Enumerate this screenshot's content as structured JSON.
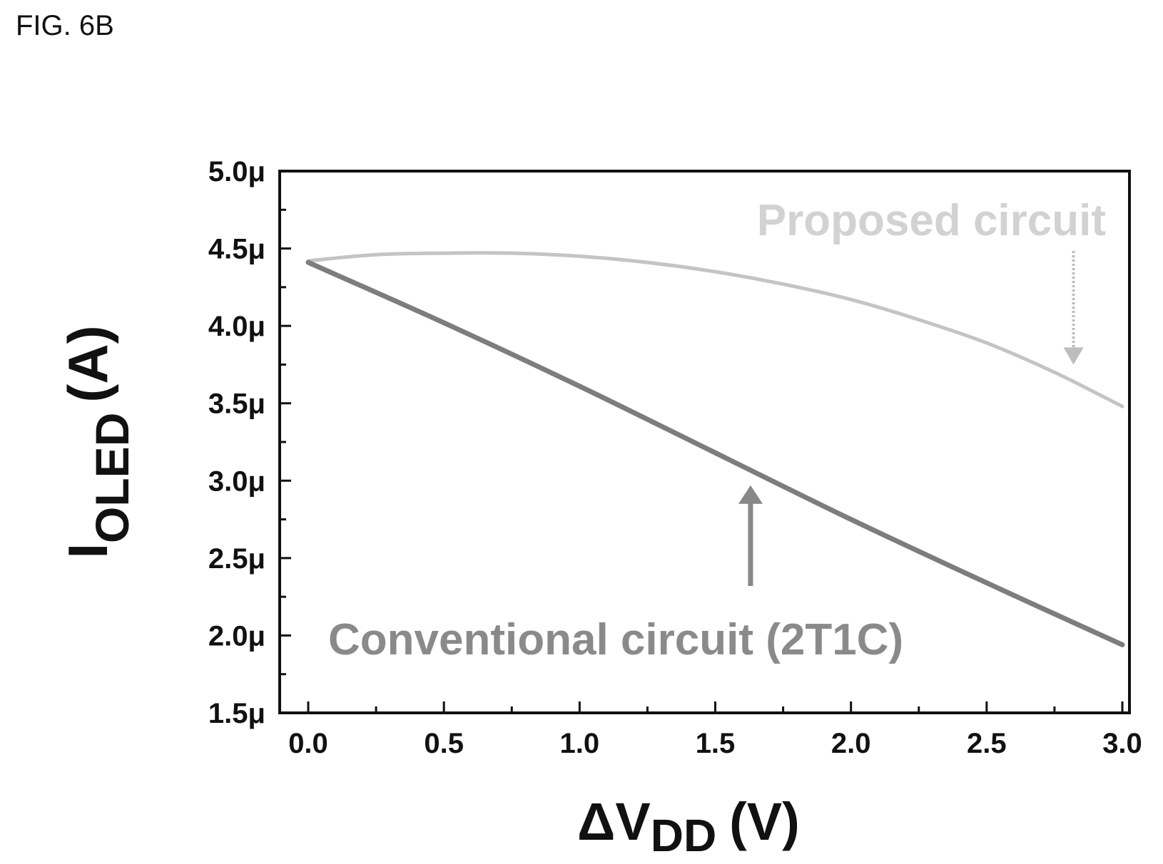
{
  "figure_label": "FIG. 6B",
  "chart_data": {
    "type": "line",
    "xlabel": {
      "delta": "ΔV",
      "sub": "DD",
      "unit": "(V)"
    },
    "ylabel": {
      "main": "I",
      "sub": "OLED",
      "unit": "(A)"
    },
    "xlim": [
      0.0,
      3.0
    ],
    "ylim": [
      1.5,
      5.0
    ],
    "x_ticks": [
      "0.0",
      "0.5",
      "1.0",
      "1.5",
      "2.0",
      "2.5",
      "3.0"
    ],
    "y_ticks": [
      "1.5μ",
      "2.0μ",
      "2.5μ",
      "3.0μ",
      "3.5μ",
      "4.0μ",
      "4.5μ",
      "5.0μ"
    ],
    "y_unit": "μA",
    "series": [
      {
        "name": "Proposed circuit",
        "color": "#c4c4c4",
        "x": [
          0.0,
          0.25,
          0.5,
          0.75,
          1.0,
          1.25,
          1.5,
          1.75,
          2.0,
          2.25,
          2.5,
          2.75,
          3.0
        ],
        "y": [
          4.42,
          4.46,
          4.47,
          4.47,
          4.45,
          4.41,
          4.35,
          4.27,
          4.17,
          4.04,
          3.89,
          3.7,
          3.48
        ]
      },
      {
        "name": "Conventional circuit (2T1C)",
        "color": "#7d7d7d",
        "x": [
          0.0,
          0.5,
          1.0,
          1.5,
          2.0,
          2.5,
          3.0
        ],
        "y": [
          4.41,
          4.02,
          3.61,
          3.18,
          2.75,
          2.34,
          1.94
        ]
      }
    ],
    "annotations": [
      {
        "text": "Proposed circuit",
        "color": "#d2d2d2",
        "arrow_x": 2.82,
        "arrow_from_y": 4.0,
        "arrow_to_y": 3.75
      },
      {
        "text": "Conventional circuit (2T1C)",
        "color": "#8a8a8a",
        "arrow_x": 1.63,
        "arrow_from_y": 2.32,
        "arrow_to_y": 2.97
      }
    ],
    "grid": false,
    "legend": "none"
  }
}
